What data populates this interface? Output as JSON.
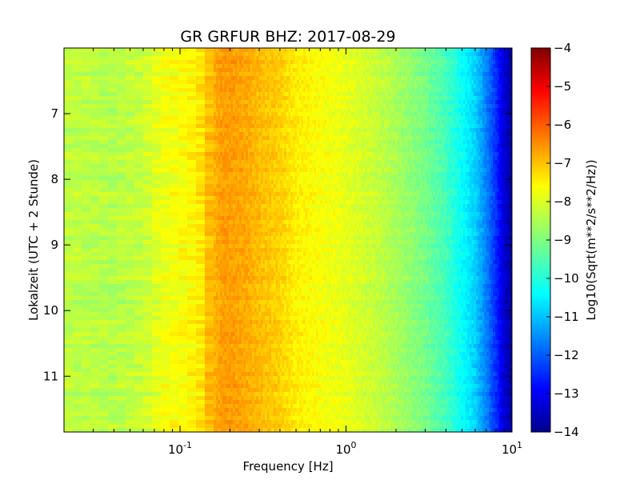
{
  "chart_data": {
    "type": "heatmap",
    "title": "GR GRFUR BHZ: 2017-08-29",
    "xlabel": "Frequency [Hz]",
    "ylabel": "Lokalzeit (UTC + 2 Stunde)",
    "colorbar_label": "Log10(Sqrt(m**2/s**2/Hz))",
    "x_scale": "log",
    "xlim": [
      0.02,
      10
    ],
    "x_ticks": [
      {
        "value": 0.1,
        "base": "10",
        "exp": "-1"
      },
      {
        "value": 1,
        "base": "10",
        "exp": "0"
      },
      {
        "value": 10,
        "base": "10",
        "exp": "1"
      }
    ],
    "ylim": [
      6.0,
      11.85
    ],
    "y_inverted": true,
    "y_ticks": [
      7,
      8,
      9,
      10,
      11
    ],
    "y_tick_labels": [
      "7",
      "8",
      "9",
      "10",
      "11"
    ],
    "colorbar": {
      "colormap": "jet",
      "vmin": -14,
      "vmax": -4,
      "ticks": [
        -4,
        -5,
        -6,
        -7,
        -8,
        -9,
        -10,
        -11,
        -12,
        -13,
        -14
      ],
      "tick_labels": [
        "−4",
        "−5",
        "−6",
        "−7",
        "−8",
        "−9",
        "−10",
        "−11",
        "−12",
        "−13",
        "−14"
      ]
    },
    "spectrum_profile": {
      "frequency_hz": [
        0.02,
        0.03,
        0.04,
        0.06,
        0.08,
        0.1,
        0.13,
        0.15,
        0.18,
        0.2,
        0.25,
        0.3,
        0.4,
        0.5,
        0.7,
        1.0,
        1.5,
        2.0,
        3.0,
        4.0,
        5.0,
        6.0,
        7.0,
        8.0,
        9.0,
        10.0
      ],
      "log10_amplitude": [
        -8.4,
        -8.4,
        -8.5,
        -8.3,
        -7.9,
        -7.8,
        -7.6,
        -7.1,
        -6.8,
        -6.8,
        -6.9,
        -7.1,
        -7.3,
        -7.6,
        -7.8,
        -8.0,
        -8.3,
        -8.6,
        -9.1,
        -9.6,
        -10.2,
        -10.7,
        -11.5,
        -12.3,
        -13.2,
        -13.8
      ]
    },
    "grid": false,
    "legend": "none"
  }
}
